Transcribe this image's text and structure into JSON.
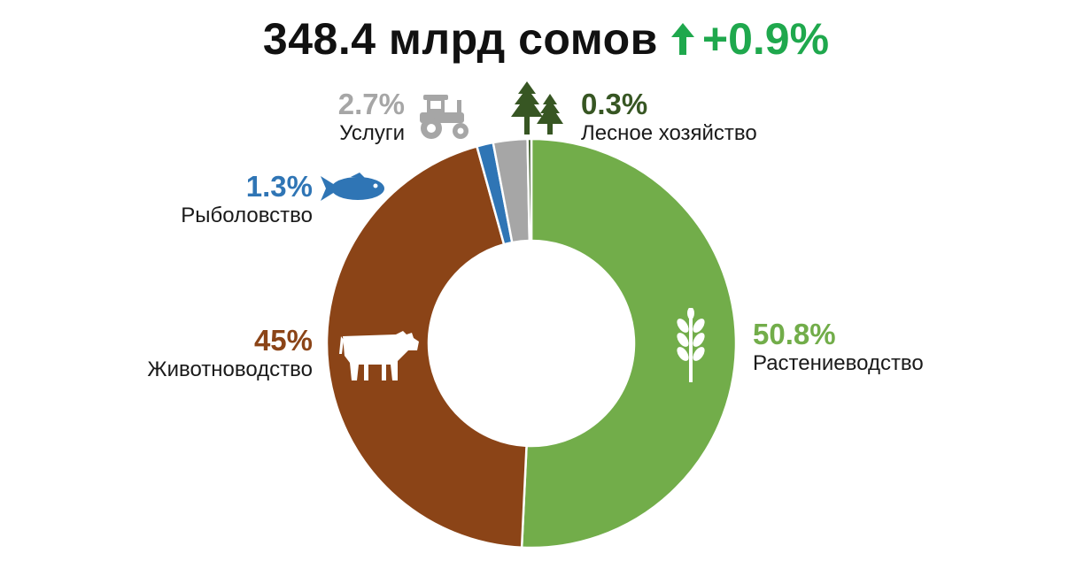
{
  "header": {
    "total": "348.4 млрд сомов",
    "growth": "+0.9%",
    "growth_color": "#1fa84d",
    "growth_icon": "arrow-up-icon"
  },
  "chart_data": {
    "type": "pie",
    "variant": "donut",
    "categories": [
      "Растениеводство",
      "Животноводство",
      "Рыболовство",
      "Услуги",
      "Лесное хозяйство"
    ],
    "values": [
      50.8,
      45,
      1.3,
      2.7,
      0.3
    ],
    "labels": [
      "50.8%",
      "45%",
      "1.3%",
      "2.7%",
      "0.3%"
    ],
    "colors": [
      "#72ad4a",
      "#8b4417",
      "#2f75b5",
      "#a6a6a6",
      "#375623"
    ],
    "icons": [
      "wheat-icon",
      "cow-icon",
      "fish-icon",
      "tractor-icon",
      "trees-icon"
    ],
    "start_angle_deg": 0,
    "direction": "clockwise"
  }
}
